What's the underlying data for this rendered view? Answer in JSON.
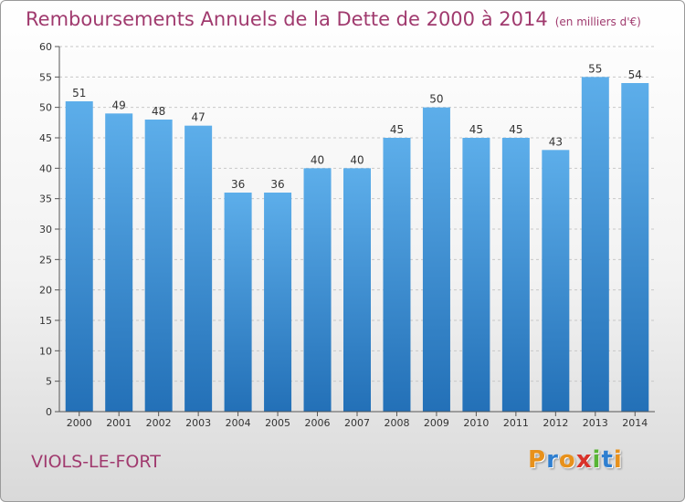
{
  "header": {
    "title": "Remboursements Annuels de la Dette de 2000 à 2014",
    "subtitle": "(en milliers d'€)"
  },
  "footer": {
    "place": "VIOLS-LE-FORT",
    "logo_letters": [
      "P",
      "r",
      "o",
      "x",
      "i",
      "t",
      "i"
    ]
  },
  "colors": {
    "title": "#a03a6e",
    "bar_top": "#5daeea",
    "bar_bottom": "#2370b7",
    "grid": "#c8c8c8"
  },
  "chart_data": {
    "type": "bar",
    "title": "Remboursements Annuels de la Dette de 2000 à 2014",
    "xlabel": "",
    "ylabel": "",
    "categories": [
      "2000",
      "2001",
      "2002",
      "2003",
      "2004",
      "2005",
      "2006",
      "2007",
      "2008",
      "2009",
      "2010",
      "2011",
      "2012",
      "2013",
      "2014"
    ],
    "values": [
      51,
      49,
      48,
      47,
      36,
      36,
      40,
      40,
      45,
      50,
      45,
      45,
      43,
      55,
      54
    ],
    "ylim": [
      0,
      60
    ],
    "yticks": [
      0,
      5,
      10,
      15,
      20,
      25,
      30,
      35,
      40,
      45,
      50,
      55,
      60
    ],
    "grid": true,
    "data_labels": true
  }
}
